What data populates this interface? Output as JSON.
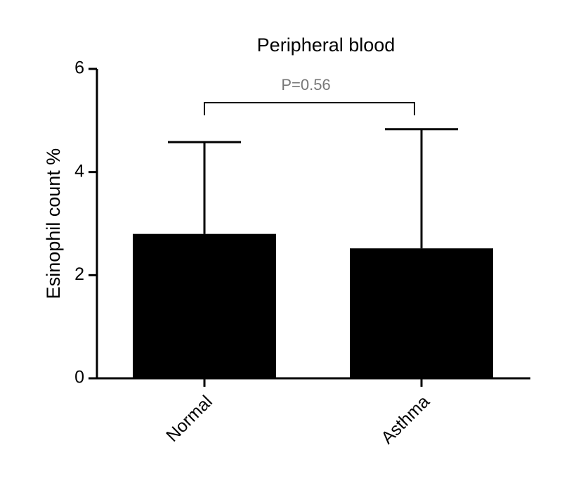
{
  "chart_data": {
    "type": "bar",
    "title": "Peripheral blood",
    "y_label": "Esinophil count %",
    "categories": [
      "Normal",
      "Asthma"
    ],
    "values": [
      2.8,
      2.52
    ],
    "errors": [
      1.78,
      2.31
    ],
    "color": "#000000",
    "ylim": [
      0,
      6
    ],
    "yticks": [
      0,
      2,
      4,
      6
    ],
    "annotation": "P=0.56"
  }
}
